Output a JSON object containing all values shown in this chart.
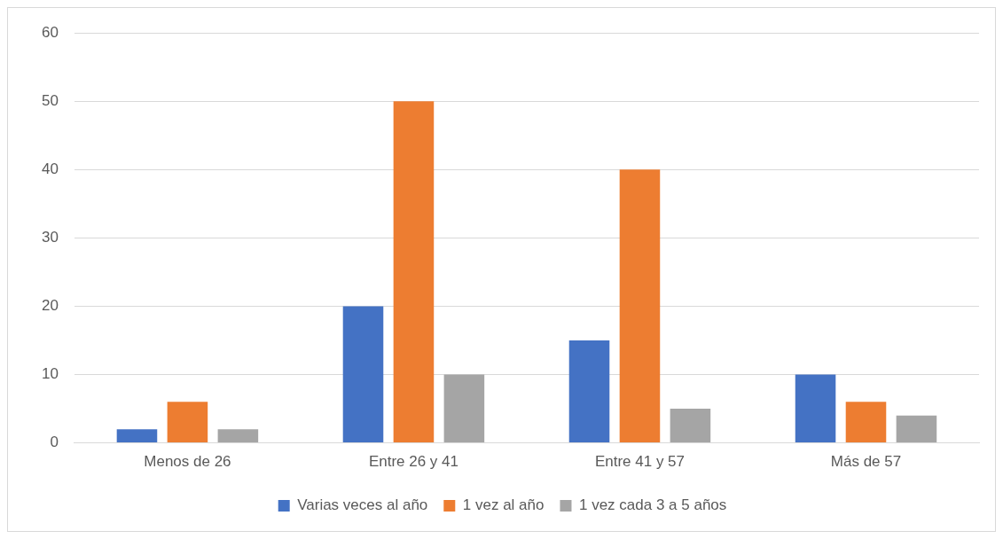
{
  "chart_data": {
    "type": "bar",
    "categories": [
      "Menos de 26",
      "Entre 26 y 41",
      "Entre 41 y 57",
      "Más de 57"
    ],
    "series": [
      {
        "name": "Varias veces al año",
        "color": "#4472c4",
        "values": [
          2,
          20,
          15,
          10
        ]
      },
      {
        "name": "1 vez al año",
        "color": "#ed7d31",
        "values": [
          6,
          50,
          40,
          6
        ]
      },
      {
        "name": "1 vez cada 3 a 5 años",
        "color": "#a5a5a5",
        "values": [
          2,
          10,
          5,
          4
        ]
      }
    ],
    "ylim": [
      0,
      60
    ],
    "yticks": [
      0,
      10,
      20,
      30,
      40,
      50,
      60
    ],
    "grid": "y",
    "legend": "bottom"
  }
}
